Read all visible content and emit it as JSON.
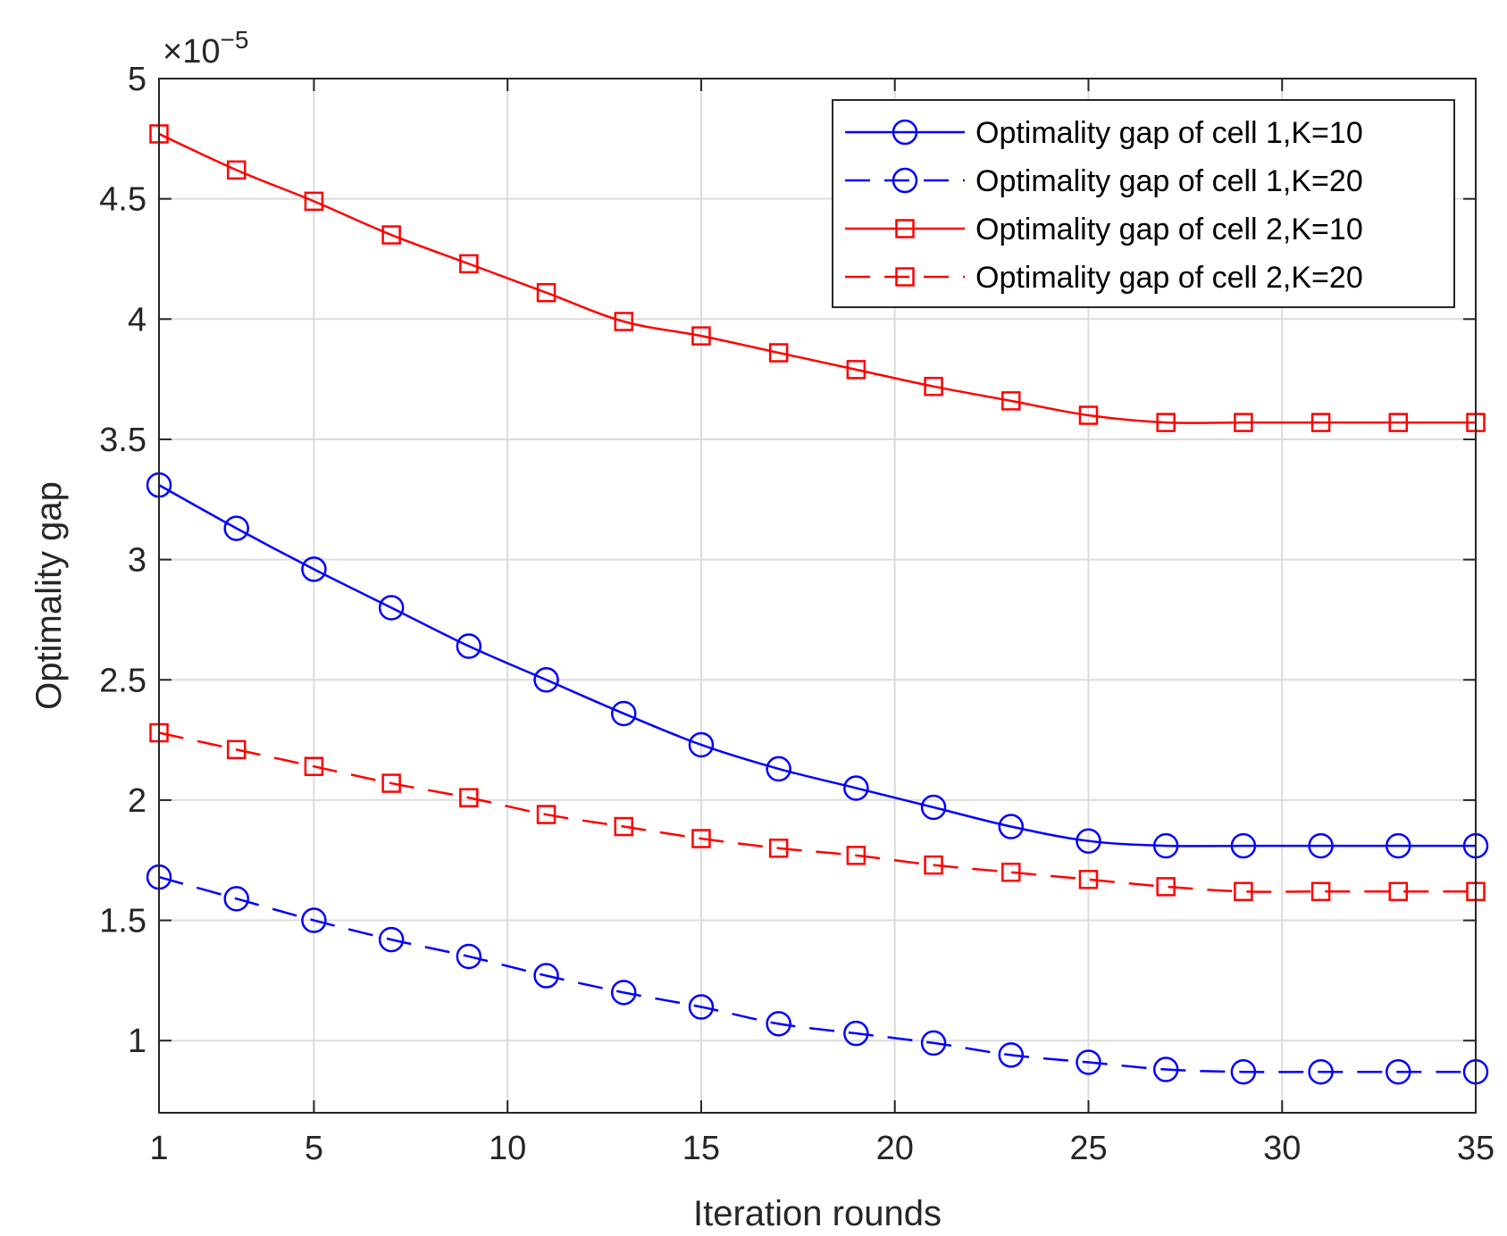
{
  "chart_data": {
    "type": "line",
    "title": "",
    "xlabel": "Iteration rounds",
    "ylabel": "Optimality gap",
    "exponent_base": "×10",
    "exponent_power": "−5",
    "xlim": [
      1,
      35
    ],
    "ylim": [
      0.7,
      5.0
    ],
    "xticks": [
      1,
      5,
      10,
      15,
      20,
      25,
      30,
      35
    ],
    "xtick_labels": [
      "1",
      "5",
      "10",
      "15",
      "20",
      "25",
      "30",
      "35"
    ],
    "yticks": [
      1,
      1.5,
      2,
      2.5,
      3,
      3.5,
      4,
      4.5,
      5
    ],
    "ytick_labels": [
      "1",
      "1.5",
      "2",
      "2.5",
      "3",
      "3.5",
      "4",
      "4.5",
      "5"
    ],
    "grid": true,
    "legend_position": "top-right",
    "x": [
      1,
      3,
      5,
      7,
      9,
      11,
      13,
      15,
      17,
      19,
      21,
      23,
      25,
      27,
      29,
      31,
      33,
      35
    ],
    "series": [
      {
        "name": "Optimality gap of cell 1,K=10",
        "color": "#0000ff",
        "linestyle": "solid",
        "marker": "circle",
        "values": [
          3.31,
          3.13,
          2.96,
          2.8,
          2.64,
          2.5,
          2.36,
          2.23,
          2.13,
          2.05,
          1.97,
          1.89,
          1.83,
          1.81,
          1.81,
          1.81,
          1.81,
          1.81
        ]
      },
      {
        "name": "Optimality gap of cell 1,K=20",
        "color": "#0000ff",
        "linestyle": "dashed",
        "marker": "circle",
        "values": [
          1.68,
          1.59,
          1.5,
          1.42,
          1.35,
          1.27,
          1.2,
          1.14,
          1.07,
          1.03,
          0.99,
          0.94,
          0.91,
          0.88,
          0.87,
          0.87,
          0.87,
          0.87
        ]
      },
      {
        "name": "Optimality gap of cell 2,K=10",
        "color": "#ff0000",
        "linestyle": "solid",
        "marker": "square",
        "values": [
          4.77,
          4.62,
          4.49,
          4.35,
          4.23,
          4.11,
          3.99,
          3.93,
          3.86,
          3.79,
          3.72,
          3.66,
          3.6,
          3.57,
          3.57,
          3.57,
          3.57,
          3.57
        ]
      },
      {
        "name": "Optimality gap of cell 2,K=20",
        "color": "#ff0000",
        "linestyle": "dashed",
        "marker": "square",
        "values": [
          2.28,
          2.21,
          2.14,
          2.07,
          2.01,
          1.94,
          1.89,
          1.84,
          1.8,
          1.77,
          1.73,
          1.7,
          1.67,
          1.64,
          1.62,
          1.62,
          1.62,
          1.62
        ]
      }
    ]
  }
}
